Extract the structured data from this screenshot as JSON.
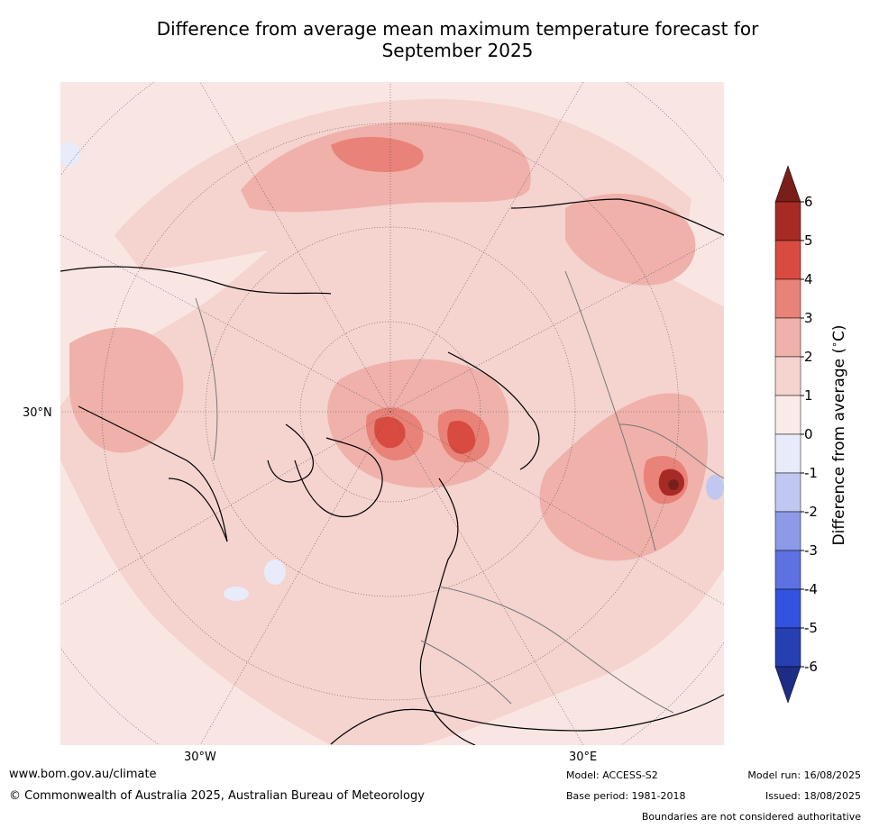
{
  "title": {
    "line1": "Difference from average mean maximum temperature forecast for",
    "line2": "September 2025"
  },
  "map": {
    "projection": "north-polar-stereographic",
    "labels": {
      "lat_30n": "30°N",
      "lon_30w": "30°W",
      "lon_30e": "30°E"
    },
    "fill_color": "#f9e6e2"
  },
  "colorbar": {
    "label": "Difference from average ($^\\circ$C)",
    "label_text": "Difference from average (",
    "label_unit": "C)",
    "ticks": [
      "6",
      "5",
      "4",
      "3",
      "2",
      "1",
      "0",
      "-1",
      "-2",
      "-3",
      "-4",
      "-5",
      "-6"
    ],
    "colors": [
      "#a82a25",
      "#d94b40",
      "#e98278",
      "#efb1aa",
      "#f5d3cf",
      "#faebe8",
      "#e8ebfa",
      "#c0c8f1",
      "#8c9ae8",
      "#5d71e1",
      "#3352df",
      "#2640b4"
    ],
    "over_color": "#7a1e1a",
    "under_color": "#1e2c86"
  },
  "footer": {
    "website": "www.bom.gov.au/climate",
    "copyright": "© Commonwealth of Australia 2025, Australian Bureau of Meteorology",
    "model": "Model: ACCESS-S2",
    "base_period": "Base period: 1981-2018",
    "model_run": "Model run: 16/08/2025",
    "issued": "Issued: 18/08/2025",
    "disclaimer": "Boundaries are not considered authoritative"
  }
}
